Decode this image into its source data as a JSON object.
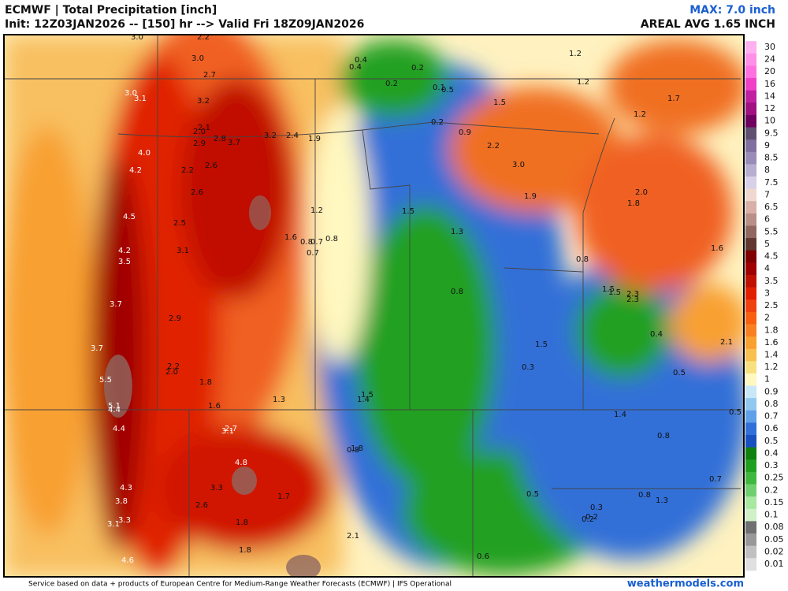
{
  "header": {
    "title": "ECMWF | Total Precipitation [inch]",
    "init": "Init: 12Z03JAN2026 -- [150] hr --> Valid Fri 18Z09JAN2026",
    "max": "MAX: 7.0 inch",
    "areal_avg": "AREAL AVG 1.65 INCH"
  },
  "legend": {
    "items": [
      {
        "label": "30",
        "color": "#ffb0f0"
      },
      {
        "label": "24",
        "color": "#ff90e8"
      },
      {
        "label": "20",
        "color": "#ff70e0"
      },
      {
        "label": "16",
        "color": "#f040c8"
      },
      {
        "label": "14",
        "color": "#c020a0"
      },
      {
        "label": "12",
        "color": "#a01080"
      },
      {
        "label": "10",
        "color": "#700060"
      },
      {
        "label": "9.5",
        "color": "#605070"
      },
      {
        "label": "9",
        "color": "#8070a0"
      },
      {
        "label": "8.5",
        "color": "#9a8cb8"
      },
      {
        "label": "8",
        "color": "#b8aed0"
      },
      {
        "label": "7.5",
        "color": "#d8d0e8"
      },
      {
        "label": "7",
        "color": "#f0d8d0"
      },
      {
        "label": "6.5",
        "color": "#d8b0a8"
      },
      {
        "label": "6",
        "color": "#b89088"
      },
      {
        "label": "5.5",
        "color": "#906860"
      },
      {
        "label": "5",
        "color": "#603830"
      },
      {
        "label": "4.5",
        "color": "#800000"
      },
      {
        "label": "4",
        "color": "#a00000"
      },
      {
        "label": "3.5",
        "color": "#c01000"
      },
      {
        "label": "3",
        "color": "#e02000"
      },
      {
        "label": "2.5",
        "color": "#f04010"
      },
      {
        "label": "2",
        "color": "#f86010"
      },
      {
        "label": "1.8",
        "color": "#f88020"
      },
      {
        "label": "1.6",
        "color": "#f8a030"
      },
      {
        "label": "1.4",
        "color": "#f8c050"
      },
      {
        "label": "1.2",
        "color": "#f8e080"
      },
      {
        "label": "1",
        "color": "#fff8c0"
      },
      {
        "label": "0.9",
        "color": "#c8e8f8"
      },
      {
        "label": "0.8",
        "color": "#90c8f0"
      },
      {
        "label": "0.7",
        "color": "#60a0e8"
      },
      {
        "label": "0.6",
        "color": "#3070d8"
      },
      {
        "label": "0.5",
        "color": "#1850c0"
      },
      {
        "label": "0.4",
        "color": "#108010"
      },
      {
        "label": "0.3",
        "color": "#20a020"
      },
      {
        "label": "0.25",
        "color": "#40b840"
      },
      {
        "label": "0.2",
        "color": "#70d070"
      },
      {
        "label": "0.15",
        "color": "#a8e8a0"
      },
      {
        "label": "0.1",
        "color": "#d0f0c8"
      },
      {
        "label": "0.08",
        "color": "#707070"
      },
      {
        "label": "0.05",
        "color": "#989898"
      },
      {
        "label": "0.02",
        "color": "#c0c0c0"
      },
      {
        "label": "0.01",
        "color": "#e0e0e0"
      }
    ]
  },
  "map": {
    "labels": [
      "3.0",
      "2.2",
      "3.0",
      "0.4",
      "0.4",
      "0.2",
      "1.2",
      "2.7",
      "0.2",
      "0.1",
      "0.5",
      "1.2",
      "3.0",
      "3.1",
      "3.2",
      "1.5",
      "1.7",
      "1.2",
      "0.2",
      "0.9",
      "2.1",
      "2.0",
      "2.8",
      "3.7",
      "3.2",
      "2.4",
      "1.9",
      "2.9",
      "4.0",
      "2.2",
      "4.2",
      "2.2",
      "2.6",
      "3.0",
      "2.6",
      "2.0",
      "1.9",
      "1.8",
      "1.2",
      "1.5",
      "4.5",
      "2.5",
      "1.3",
      "1.6",
      "0.8",
      "0.7",
      "0.8",
      "0.7",
      "4.2",
      "3.1",
      "1.6",
      "3.5",
      "0.8",
      "0.8",
      "1.5",
      "1.5",
      "2.3",
      "2.3",
      "3.7",
      "2.9",
      "0.4",
      "2.1",
      "3.7",
      "1.5",
      "2.2",
      "2.0",
      "0.3",
      "0.5",
      "5.5",
      "1.8",
      "1.5",
      "1.4",
      "1.3",
      "5.1",
      "4.4",
      "1.6",
      "2.7",
      "3.1",
      "1.4",
      "0.5",
      "4.4",
      "0.8",
      "1.8",
      "0.8",
      "4.8",
      "0.7",
      "4.3",
      "3.3",
      "1.7",
      "0.5",
      "0.8",
      "1.3",
      "3.8",
      "2.6",
      "0.3",
      "0.2",
      "0.2",
      "3.3",
      "3.1",
      "1.8",
      "2.1",
      "1.8",
      "4.6",
      "0.6"
    ]
  },
  "footer": {
    "credit": "Service based on data + products of European Centre for Medium-Range Weather Forecasts (ECMWF) | IFS Operational",
    "brand": "weathermodels.com"
  }
}
